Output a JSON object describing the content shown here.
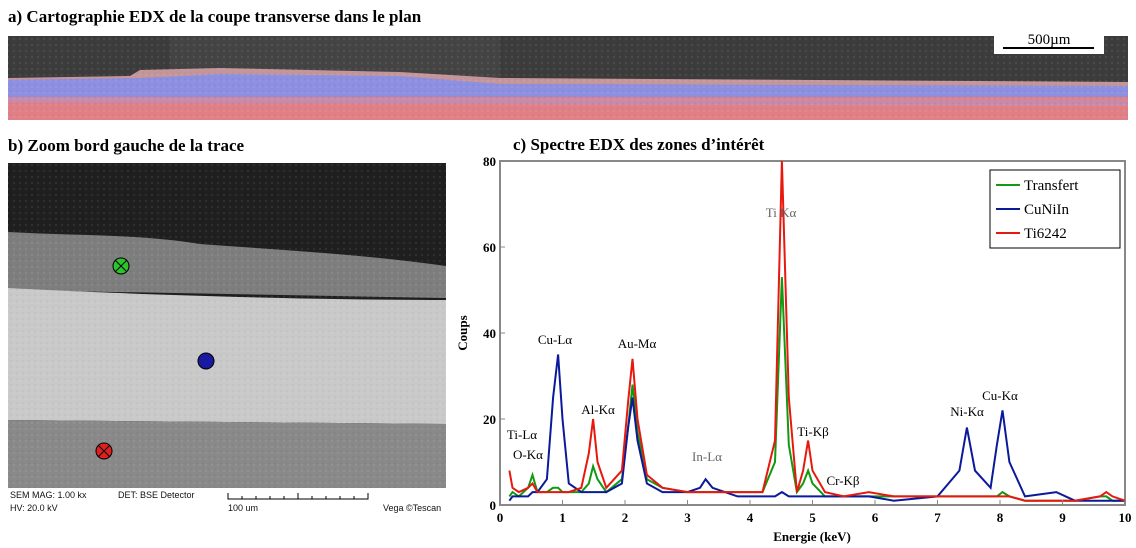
{
  "panel_a": {
    "title": "a) Cartographie EDX de la coupe transverse dans le plan",
    "scale_bar": "500µm"
  },
  "panel_b": {
    "title": "b) Zoom bord gauche de la trace",
    "info": {
      "mag": "SEM MAG: 1.00 kx",
      "det": "DET: BSE Detector",
      "hv": "HV: 20.0 kV",
      "scale": "100 um",
      "brand": "Vega ©Tescan"
    }
  },
  "chart_data": {
    "type": "line",
    "title": "c) Spectre EDX des zones d’intérêt",
    "xlabel": "Energie (keV)",
    "ylabel": "Coups",
    "x": [
      0.15,
      0.2,
      0.3,
      0.45,
      0.52,
      0.6,
      0.75,
      0.85,
      0.93,
      1.0,
      1.1,
      1.3,
      1.42,
      1.49,
      1.56,
      1.7,
      1.95,
      2.05,
      2.12,
      2.2,
      2.35,
      2.6,
      3.0,
      3.2,
      3.29,
      3.4,
      3.8,
      4.2,
      4.4,
      4.51,
      4.62,
      4.75,
      4.85,
      4.93,
      5.0,
      5.2,
      5.5,
      5.9,
      6.3,
      7.0,
      7.35,
      7.47,
      7.6,
      7.85,
      7.95,
      8.04,
      8.15,
      8.4,
      8.9,
      9.2,
      9.6,
      9.7,
      9.8,
      10
    ],
    "series": [
      {
        "name": "Transfert",
        "color": "#119911",
        "values": [
          2,
          3,
          2,
          4,
          7,
          3,
          3,
          4,
          4,
          3,
          3,
          3,
          5,
          9,
          6,
          3,
          6,
          18,
          28,
          17,
          6,
          4,
          3,
          3,
          3,
          3,
          3,
          3,
          10,
          53,
          14,
          3,
          5,
          8,
          5,
          2,
          2,
          2,
          2,
          2,
          2,
          2,
          2,
          2,
          2,
          3,
          2,
          1,
          1,
          1,
          2,
          2,
          1,
          1
        ]
      },
      {
        "name": "CuNiIn",
        "color": "#0a1a9a",
        "values": [
          1,
          2,
          2,
          2,
          3,
          3,
          6,
          25,
          35,
          20,
          5,
          3,
          3,
          3,
          3,
          3,
          5,
          18,
          25,
          15,
          5,
          3,
          3,
          4,
          6,
          4,
          2,
          2,
          2,
          3,
          2,
          2,
          2,
          2,
          2,
          2,
          2,
          2,
          1,
          2,
          8,
          18,
          8,
          4,
          14,
          22,
          10,
          2,
          3,
          1,
          1,
          1,
          1,
          1
        ]
      },
      {
        "name": "Ti6242",
        "color": "#e8180e",
        "values": [
          8,
          4,
          3,
          4,
          5,
          3,
          3,
          3,
          3,
          3,
          3,
          4,
          12,
          20,
          10,
          4,
          8,
          24,
          34,
          20,
          7,
          4,
          3,
          3,
          3,
          3,
          3,
          3,
          15,
          80,
          25,
          3,
          8,
          15,
          8,
          3,
          2,
          3,
          2,
          2,
          2,
          2,
          2,
          2,
          2,
          2,
          2,
          1,
          1,
          1,
          2,
          3,
          2,
          1
        ]
      }
    ],
    "xlim": [
      0,
      10
    ],
    "ylim": [
      0,
      80
    ],
    "xticks": [
      0,
      1,
      2,
      3,
      4,
      5,
      6,
      7,
      8,
      9,
      10
    ],
    "yticks": [
      0,
      20,
      40,
      60,
      80
    ],
    "legend": "upper right",
    "annotations": [
      "Ti Kα",
      "Cu-Lα",
      "Au-Mα",
      "Al-Kα",
      "Ti-Lα",
      "O-Kα",
      "In-Lα",
      "Ti-Kβ",
      "Cr-Kβ",
      "Ni-Kα",
      "Cu-Kα"
    ]
  }
}
